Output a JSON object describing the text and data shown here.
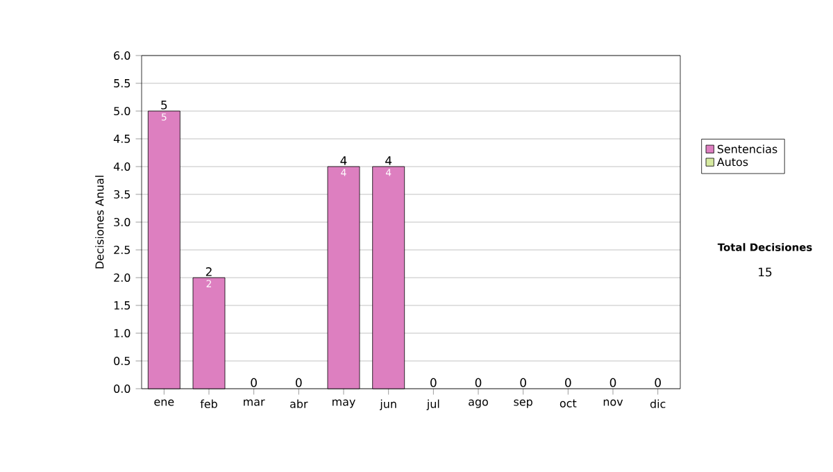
{
  "chart_data": {
    "type": "bar",
    "stacked": true,
    "ylabel": "Decisiones Anual",
    "categories": [
      "ene",
      "feb",
      "mar",
      "abr",
      "may",
      "jun",
      "jul",
      "ago",
      "sep",
      "oct",
      "nov",
      "dic"
    ],
    "series": [
      {
        "name": "Sentencias",
        "color": "#dd7fc0",
        "values": [
          5,
          2,
          0,
          0,
          4,
          4,
          0,
          0,
          0,
          0,
          0,
          0
        ],
        "value_labels": [
          "5",
          "2",
          null,
          null,
          "4",
          "4",
          null,
          null,
          null,
          null,
          null,
          null
        ]
      },
      {
        "name": "Autos",
        "color": "#d6eaa0",
        "values": [
          0,
          0,
          0,
          0,
          0,
          0,
          0,
          0,
          0,
          0,
          0,
          0
        ]
      }
    ],
    "totals": [
      "5",
      "2",
      "0",
      "0",
      "4",
      "4",
      "0",
      "0",
      "0",
      "0",
      "0",
      "0"
    ],
    "ylim": [
      0,
      6
    ],
    "yticks": [
      {
        "value": 0,
        "label": "0.0"
      },
      {
        "value": 0.5,
        "label": "0.5"
      },
      {
        "value": 1,
        "label": "1.0"
      },
      {
        "value": 1.5,
        "label": "1.5"
      },
      {
        "value": 2,
        "label": "2.0"
      },
      {
        "value": 2.5,
        "label": "2.5"
      },
      {
        "value": 3,
        "label": "3.0"
      },
      {
        "value": 3.5,
        "label": "3.5"
      },
      {
        "value": 4,
        "label": "4.0"
      },
      {
        "value": 4.5,
        "label": "4.5"
      },
      {
        "value": 5,
        "label": "5.0"
      },
      {
        "value": 5.5,
        "label": "5.5"
      },
      {
        "value": 6,
        "label": "6.0"
      }
    ],
    "grid": "y",
    "legend": "right",
    "annotations": [
      "Total Decisiones",
      "15"
    ]
  }
}
